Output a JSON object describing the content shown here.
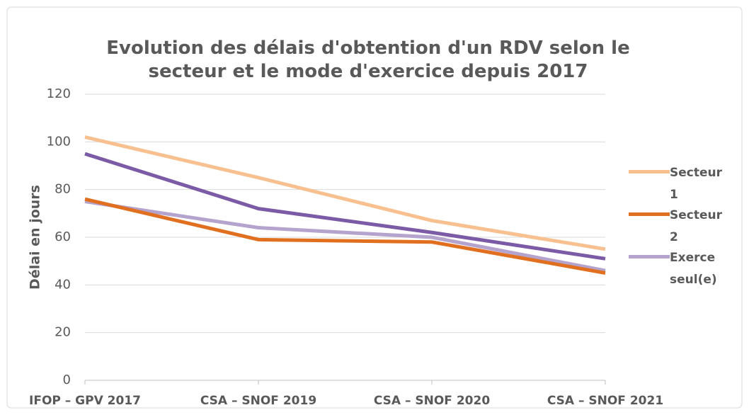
{
  "chart_data": {
    "type": "line",
    "title": "Evolution des délais d'obtention d'un RDV selon le secteur et le mode d'exercice depuis 2017",
    "y_label": "Délai en jours",
    "categories": [
      "IFOP – GPV 2017",
      "CSA – SNOF 2019",
      "CSA – SNOF 2020",
      "CSA – SNOF 2021"
    ],
    "series": [
      {
        "name": "Secteur 1",
        "color": "#f8c08f",
        "values": [
          102,
          85,
          67,
          55
        ]
      },
      {
        "color": "#7b5aa6",
        "values": [
          95,
          72,
          62,
          51
        ]
      },
      {
        "name": "Exerce seul(e)",
        "color": "#b4a3cc",
        "values": [
          75,
          64,
          60,
          46
        ]
      },
      {
        "name": "Secteur 2",
        "color": "#e07020",
        "values": [
          76,
          59,
          58,
          45
        ]
      }
    ],
    "ylim": [
      0,
      120
    ],
    "yticks": [
      0,
      20,
      40,
      60,
      80,
      100,
      120
    ],
    "grid": true,
    "legend": "right"
  }
}
